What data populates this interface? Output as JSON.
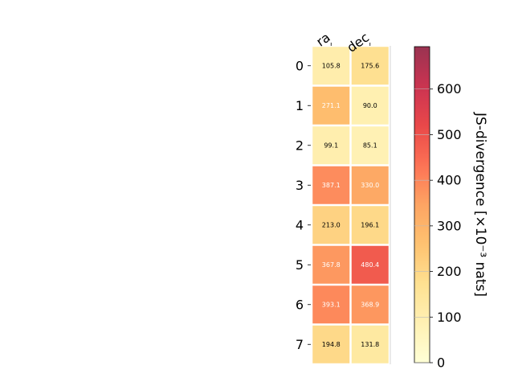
{
  "chart_data": {
    "type": "heatmap",
    "columns": [
      "ra",
      "dec"
    ],
    "rows": [
      "0",
      "1",
      "2",
      "3",
      "4",
      "5",
      "6",
      "7"
    ],
    "values": [
      [
        105.8,
        175.6
      ],
      [
        271.1,
        90.0
      ],
      [
        99.1,
        85.1
      ],
      [
        387.1,
        330.0
      ],
      [
        213.0,
        196.1
      ],
      [
        367.8,
        480.4
      ],
      [
        393.1,
        368.9
      ],
      [
        194.8,
        131.8
      ]
    ],
    "value_labels": [
      [
        "105.8",
        "175.6"
      ],
      [
        "271.1",
        "90.0"
      ],
      [
        "99.1",
        "85.1"
      ],
      [
        "387.1",
        "330.0"
      ],
      [
        "213.0",
        "196.1"
      ],
      [
        "367.8",
        "480.4"
      ],
      [
        "393.1",
        "368.9"
      ],
      [
        "194.8",
        "131.8"
      ]
    ],
    "colormap": "YlOrRd",
    "colorbar": {
      "label": "JS-divergence [×10⁻³ nats]",
      "vmin": 0,
      "vmax": 693,
      "ticks": [
        0,
        100,
        200,
        300,
        400,
        500,
        600
      ],
      "tick_labels": [
        "0",
        "100",
        "200",
        "300",
        "400",
        "500",
        "600"
      ]
    },
    "grid": false
  }
}
